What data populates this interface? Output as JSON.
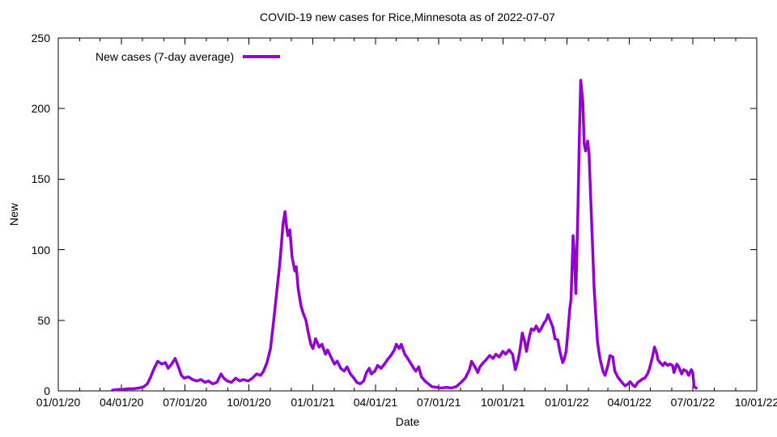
{
  "title": "COVID-19 new cases for Rice,Minnesota as of 2022-07-07",
  "legend": {
    "label": "New cases (7-day average)",
    "line_color": "#9400d3"
  },
  "axes": {
    "x": {
      "label": "Date",
      "tick_labels": [
        "01/01/20",
        "04/01/20",
        "07/01/20",
        "10/01/20",
        "01/01/21",
        "04/01/21",
        "07/01/21",
        "10/01/21",
        "01/01/22",
        "04/01/22",
        "07/01/22",
        "10/01/22"
      ],
      "minor_ticks": "monthly"
    },
    "y": {
      "label": "New",
      "tick_labels": [
        "0",
        "50",
        "100",
        "150",
        "200",
        "250"
      ]
    }
  },
  "chart_data": {
    "type": "line",
    "title": "COVID-19 new cases for Rice,Minnesota as of 2022-07-07",
    "xlabel": "Date",
    "ylabel": "New",
    "xlim": [
      "2020-01-01",
      "2022-10-01"
    ],
    "ylim": [
      0,
      250
    ],
    "grid": false,
    "legend_position": "top-left-inside",
    "series": [
      {
        "name": "New cases (7-day average)",
        "color": "#9400d3",
        "points": [
          [
            "2020-03-19",
            0.5
          ],
          [
            "2020-03-26",
            1
          ],
          [
            "2020-04-02",
            1
          ],
          [
            "2020-04-10",
            1.5
          ],
          [
            "2020-04-18",
            1.5
          ],
          [
            "2020-04-26",
            2
          ],
          [
            "2020-05-03",
            3
          ],
          [
            "2020-05-08",
            5
          ],
          [
            "2020-05-12",
            9
          ],
          [
            "2020-05-17",
            15
          ],
          [
            "2020-05-23",
            21
          ],
          [
            "2020-05-29",
            19
          ],
          [
            "2020-06-03",
            20
          ],
          [
            "2020-06-07",
            16
          ],
          [
            "2020-06-12",
            19
          ],
          [
            "2020-06-17",
            23
          ],
          [
            "2020-06-21",
            18
          ],
          [
            "2020-06-26",
            11
          ],
          [
            "2020-06-30",
            9
          ],
          [
            "2020-07-06",
            10
          ],
          [
            "2020-07-12",
            8
          ],
          [
            "2020-07-18",
            7
          ],
          [
            "2020-07-24",
            8
          ],
          [
            "2020-07-30",
            6
          ],
          [
            "2020-08-04",
            7
          ],
          [
            "2020-08-10",
            5
          ],
          [
            "2020-08-16",
            6
          ],
          [
            "2020-08-22",
            12
          ],
          [
            "2020-08-26",
            9
          ],
          [
            "2020-08-31",
            7
          ],
          [
            "2020-09-06",
            6
          ],
          [
            "2020-09-12",
            9
          ],
          [
            "2020-09-18",
            7
          ],
          [
            "2020-09-23",
            8
          ],
          [
            "2020-09-30",
            7
          ],
          [
            "2020-10-06",
            9
          ],
          [
            "2020-10-12",
            12
          ],
          [
            "2020-10-18",
            11
          ],
          [
            "2020-10-22",
            14
          ],
          [
            "2020-10-27",
            20
          ],
          [
            "2020-11-01",
            30
          ],
          [
            "2020-11-05",
            47
          ],
          [
            "2020-11-10",
            70
          ],
          [
            "2020-11-14",
            88
          ],
          [
            "2020-11-17",
            105
          ],
          [
            "2020-11-19",
            118
          ],
          [
            "2020-11-22",
            127
          ],
          [
            "2020-11-24",
            117
          ],
          [
            "2020-11-26",
            110
          ],
          [
            "2020-11-29",
            114
          ],
          [
            "2020-12-02",
            95
          ],
          [
            "2020-12-06",
            85
          ],
          [
            "2020-12-08",
            88
          ],
          [
            "2020-12-11",
            72
          ],
          [
            "2020-12-15",
            60
          ],
          [
            "2020-12-18",
            55
          ],
          [
            "2020-12-22",
            50
          ],
          [
            "2020-12-25",
            42
          ],
          [
            "2020-12-29",
            33
          ],
          [
            "2021-01-01",
            30
          ],
          [
            "2021-01-05",
            37
          ],
          [
            "2021-01-10",
            31
          ],
          [
            "2021-01-14",
            33
          ],
          [
            "2021-01-19",
            26
          ],
          [
            "2021-01-22",
            29
          ],
          [
            "2021-01-27",
            24
          ],
          [
            "2021-02-01",
            19
          ],
          [
            "2021-02-05",
            21
          ],
          [
            "2021-02-10",
            16
          ],
          [
            "2021-02-15",
            14
          ],
          [
            "2021-02-19",
            17
          ],
          [
            "2021-02-24",
            12
          ],
          [
            "2021-03-01",
            9
          ],
          [
            "2021-03-05",
            6
          ],
          [
            "2021-03-10",
            5
          ],
          [
            "2021-03-15",
            7
          ],
          [
            "2021-03-19",
            13
          ],
          [
            "2021-03-23",
            16
          ],
          [
            "2021-03-26",
            12
          ],
          [
            "2021-03-31",
            14
          ],
          [
            "2021-04-04",
            18
          ],
          [
            "2021-04-09",
            16
          ],
          [
            "2021-04-14",
            19
          ],
          [
            "2021-04-18",
            22
          ],
          [
            "2021-04-23",
            25
          ],
          [
            "2021-04-28",
            29
          ],
          [
            "2021-05-01",
            33
          ],
          [
            "2021-05-05",
            30
          ],
          [
            "2021-05-08",
            33
          ],
          [
            "2021-05-13",
            26
          ],
          [
            "2021-05-16",
            24
          ],
          [
            "2021-05-21",
            20
          ],
          [
            "2021-05-26",
            16
          ],
          [
            "2021-05-29",
            14
          ],
          [
            "2021-06-02",
            17
          ],
          [
            "2021-06-06",
            10
          ],
          [
            "2021-06-11",
            7
          ],
          [
            "2021-06-16",
            5
          ],
          [
            "2021-06-21",
            3
          ],
          [
            "2021-06-28",
            2.5
          ],
          [
            "2021-07-05",
            2
          ],
          [
            "2021-07-12",
            2.5
          ],
          [
            "2021-07-19",
            2
          ],
          [
            "2021-07-26",
            3
          ],
          [
            "2021-08-02",
            6
          ],
          [
            "2021-08-08",
            9
          ],
          [
            "2021-08-14",
            15
          ],
          [
            "2021-08-17",
            21
          ],
          [
            "2021-08-22",
            17
          ],
          [
            "2021-08-26",
            13
          ],
          [
            "2021-08-29",
            17
          ],
          [
            "2021-09-03",
            20
          ],
          [
            "2021-09-07",
            22
          ],
          [
            "2021-09-12",
            25
          ],
          [
            "2021-09-17",
            23
          ],
          [
            "2021-09-21",
            26
          ],
          [
            "2021-09-26",
            24
          ],
          [
            "2021-10-01",
            28
          ],
          [
            "2021-10-05",
            26
          ],
          [
            "2021-10-10",
            29
          ],
          [
            "2021-10-15",
            26
          ],
          [
            "2021-10-19",
            15
          ],
          [
            "2021-10-23",
            22
          ],
          [
            "2021-10-26",
            30
          ],
          [
            "2021-10-29",
            41
          ],
          [
            "2021-11-01",
            36
          ],
          [
            "2021-11-04",
            28
          ],
          [
            "2021-11-08",
            38
          ],
          [
            "2021-11-11",
            44
          ],
          [
            "2021-11-15",
            43
          ],
          [
            "2021-11-18",
            46
          ],
          [
            "2021-11-22",
            42
          ],
          [
            "2021-11-25",
            44
          ],
          [
            "2021-11-29",
            48
          ],
          [
            "2021-12-02",
            50
          ],
          [
            "2021-12-05",
            54
          ],
          [
            "2021-12-08",
            50
          ],
          [
            "2021-12-12",
            45
          ],
          [
            "2021-12-15",
            37
          ],
          [
            "2021-12-19",
            36
          ],
          [
            "2021-12-22",
            28
          ],
          [
            "2021-12-26",
            20
          ],
          [
            "2021-12-28",
            22
          ],
          [
            "2021-12-31",
            28
          ],
          [
            "2022-01-03",
            45
          ],
          [
            "2022-01-05",
            57
          ],
          [
            "2022-01-07",
            65
          ],
          [
            "2022-01-10",
            110
          ],
          [
            "2022-01-12",
            95
          ],
          [
            "2022-01-14",
            69
          ],
          [
            "2022-01-17",
            130
          ],
          [
            "2022-01-19",
            180
          ],
          [
            "2022-01-21",
            220
          ],
          [
            "2022-01-24",
            205
          ],
          [
            "2022-01-26",
            175
          ],
          [
            "2022-01-28",
            170
          ],
          [
            "2022-01-31",
            177
          ],
          [
            "2022-02-02",
            168
          ],
          [
            "2022-02-04",
            140
          ],
          [
            "2022-02-07",
            103
          ],
          [
            "2022-02-09",
            75
          ],
          [
            "2022-02-11",
            58
          ],
          [
            "2022-02-14",
            35
          ],
          [
            "2022-02-16",
            28
          ],
          [
            "2022-02-18",
            22
          ],
          [
            "2022-02-22",
            14
          ],
          [
            "2022-02-25",
            11
          ],
          [
            "2022-03-01",
            18
          ],
          [
            "2022-03-04",
            25
          ],
          [
            "2022-03-08",
            24
          ],
          [
            "2022-03-11",
            14
          ],
          [
            "2022-03-15",
            10
          ],
          [
            "2022-03-18",
            8
          ],
          [
            "2022-03-23",
            5
          ],
          [
            "2022-03-26",
            3.5
          ],
          [
            "2022-03-30",
            5
          ],
          [
            "2022-04-02",
            6.5
          ],
          [
            "2022-04-06",
            4
          ],
          [
            "2022-04-09",
            3
          ],
          [
            "2022-04-13",
            6
          ],
          [
            "2022-04-16",
            7
          ],
          [
            "2022-04-20",
            8.5
          ],
          [
            "2022-04-23",
            9
          ],
          [
            "2022-04-27",
            12
          ],
          [
            "2022-04-30",
            16
          ],
          [
            "2022-05-04",
            24
          ],
          [
            "2022-05-07",
            31
          ],
          [
            "2022-05-10",
            27
          ],
          [
            "2022-05-12",
            22
          ],
          [
            "2022-05-15",
            20
          ],
          [
            "2022-05-19",
            18
          ],
          [
            "2022-05-22",
            20
          ],
          [
            "2022-05-26",
            18
          ],
          [
            "2022-05-29",
            19
          ],
          [
            "2022-06-02",
            18
          ],
          [
            "2022-06-04",
            13
          ],
          [
            "2022-06-08",
            19
          ],
          [
            "2022-06-11",
            17
          ],
          [
            "2022-06-15",
            12
          ],
          [
            "2022-06-18",
            15
          ],
          [
            "2022-06-22",
            14
          ],
          [
            "2022-06-25",
            11
          ],
          [
            "2022-06-29",
            15
          ],
          [
            "2022-07-01",
            13
          ],
          [
            "2022-07-03",
            3
          ],
          [
            "2022-07-06",
            2
          ]
        ]
      }
    ]
  }
}
